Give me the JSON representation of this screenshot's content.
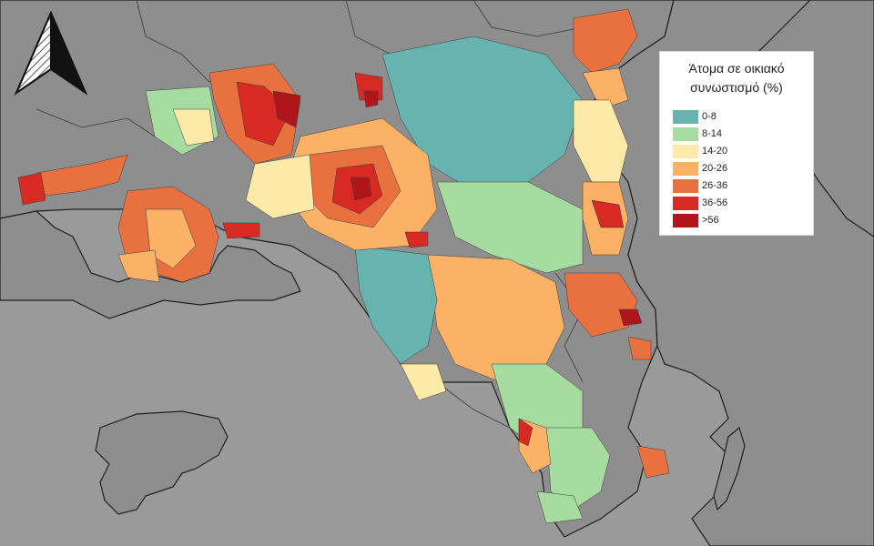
{
  "legend": {
    "title_line1": "Άτομα σε οικιακό",
    "title_line2": "συνωστισμό (%)",
    "classes": [
      {
        "label": "0-8",
        "color": "#66b3b0"
      },
      {
        "label": "8-14",
        "color": "#a7dca0"
      },
      {
        "label": "14-20",
        "color": "#fde9a8"
      },
      {
        "label": "20-26",
        "color": "#fbb267"
      },
      {
        "label": "26-36",
        "color": "#e9713f"
      },
      {
        "label": "36-56",
        "color": "#d72a22"
      },
      {
        "label": ">56",
        "color": "#b0151b"
      }
    ]
  },
  "colors": {
    "sea": "#999999",
    "background_land": "#8f8f8f",
    "boundary": "#1f1f1f"
  },
  "icons": {
    "north_arrow": "north-arrow-icon"
  }
}
